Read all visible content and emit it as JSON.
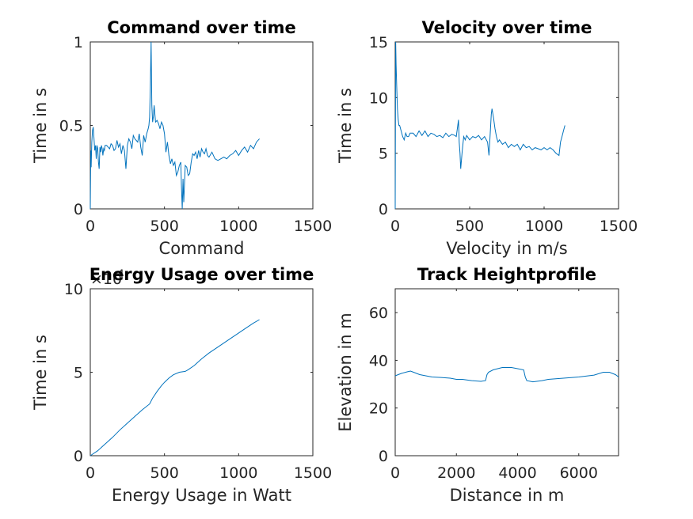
{
  "chart_data": [
    {
      "type": "line",
      "title": "Command over time",
      "xlabel": "Command",
      "ylabel": "Time in s",
      "xlim": [
        0,
        1500
      ],
      "ylim": [
        0,
        1
      ],
      "xticks": [
        0,
        500,
        1000,
        1500
      ],
      "yticks": [
        0,
        0.5,
        1
      ],
      "xtick_labels": [
        "0",
        "500",
        "1000",
        "1500"
      ],
      "ytick_labels": [
        "0",
        "0.5",
        "1"
      ],
      "grid": false,
      "series": [
        {
          "color": "#0072bd",
          "x": [
            0,
            3,
            6,
            10,
            15,
            20,
            25,
            30,
            35,
            40,
            45,
            50,
            55,
            60,
            65,
            70,
            75,
            80,
            85,
            90,
            95,
            100,
            110,
            120,
            130,
            140,
            150,
            160,
            170,
            180,
            190,
            200,
            210,
            220,
            230,
            240,
            250,
            260,
            270,
            280,
            290,
            300,
            310,
            320,
            330,
            340,
            350,
            360,
            370,
            380,
            390,
            395,
            400,
            405,
            410,
            415,
            420,
            425,
            430,
            440,
            450,
            460,
            470,
            480,
            490,
            500,
            510,
            520,
            530,
            540,
            550,
            560,
            570,
            580,
            590,
            600,
            610,
            615,
            620,
            625,
            630,
            640,
            650,
            660,
            670,
            680,
            690,
            700,
            710,
            720,
            730,
            740,
            750,
            760,
            770,
            780,
            790,
            800,
            820,
            840,
            860,
            880,
            900,
            920,
            940,
            960,
            980,
            1000,
            1020,
            1040,
            1060,
            1080,
            1100,
            1120,
            1140
          ],
          "y": [
            0.0,
            0.35,
            0.25,
            0.4,
            0.47,
            0.49,
            0.42,
            0.35,
            0.38,
            0.3,
            0.38,
            0.36,
            0.28,
            0.24,
            0.37,
            0.34,
            0.38,
            0.36,
            0.32,
            0.36,
            0.35,
            0.38,
            0.38,
            0.37,
            0.36,
            0.39,
            0.38,
            0.35,
            0.36,
            0.41,
            0.37,
            0.39,
            0.33,
            0.38,
            0.35,
            0.24,
            0.38,
            0.42,
            0.4,
            0.36,
            0.44,
            0.42,
            0.41,
            0.4,
            0.45,
            0.37,
            0.32,
            0.44,
            0.4,
            0.45,
            0.48,
            0.5,
            0.55,
            0.75,
            1.0,
            0.62,
            0.52,
            0.55,
            0.62,
            0.52,
            0.53,
            0.51,
            0.48,
            0.52,
            0.5,
            0.45,
            0.34,
            0.4,
            0.32,
            0.27,
            0.3,
            0.26,
            0.28,
            0.2,
            0.22,
            0.26,
            0.28,
            0.12,
            0.0,
            0.18,
            0.04,
            0.26,
            0.25,
            0.2,
            0.21,
            0.28,
            0.33,
            0.32,
            0.34,
            0.3,
            0.35,
            0.31,
            0.36,
            0.34,
            0.33,
            0.36,
            0.32,
            0.31,
            0.34,
            0.3,
            0.29,
            0.3,
            0.31,
            0.3,
            0.32,
            0.33,
            0.35,
            0.32,
            0.35,
            0.37,
            0.34,
            0.38,
            0.36,
            0.4,
            0.42
          ]
        }
      ]
    },
    {
      "type": "line",
      "title": "Velocity over time",
      "xlabel": "Velocity in m/s",
      "ylabel": "Time in s",
      "xlim": [
        0,
        1500
      ],
      "ylim": [
        0,
        15
      ],
      "xticks": [
        0,
        500,
        1000,
        1500
      ],
      "yticks": [
        0,
        5,
        10,
        15
      ],
      "xtick_labels": [
        "0",
        "500",
        "1000",
        "1500"
      ],
      "ytick_labels": [
        "0",
        "5",
        "10",
        "15"
      ],
      "grid": false,
      "series": [
        {
          "color": "#0072bd",
          "x": [
            0,
            3,
            6,
            10,
            15,
            20,
            25,
            30,
            40,
            50,
            60,
            70,
            80,
            90,
            100,
            120,
            140,
            160,
            180,
            200,
            220,
            240,
            260,
            280,
            300,
            320,
            340,
            360,
            380,
            400,
            410,
            420,
            425,
            430,
            435,
            440,
            450,
            460,
            470,
            480,
            500,
            520,
            540,
            560,
            580,
            600,
            620,
            630,
            640,
            645,
            650,
            660,
            670,
            680,
            690,
            700,
            720,
            740,
            760,
            780,
            800,
            820,
            840,
            860,
            880,
            900,
            920,
            940,
            960,
            980,
            1000,
            1020,
            1040,
            1060,
            1080,
            1100,
            1110,
            1120,
            1130,
            1140
          ],
          "y": [
            0.0,
            15.0,
            13.0,
            11.0,
            9.0,
            8.0,
            7.5,
            7.5,
            7.0,
            6.5,
            6.2,
            6.8,
            6.5,
            6.5,
            6.8,
            6.8,
            6.5,
            7.0,
            6.6,
            7.0,
            6.5,
            6.8,
            6.7,
            6.5,
            6.6,
            6.4,
            6.8,
            6.5,
            6.7,
            6.6,
            6.5,
            7.5,
            8.0,
            6.0,
            5.0,
            3.6,
            5.2,
            6.5,
            6.2,
            6.6,
            6.2,
            6.5,
            6.4,
            6.6,
            6.2,
            6.5,
            6.0,
            4.8,
            7.2,
            8.5,
            9.0,
            8.2,
            7.2,
            6.5,
            6.0,
            6.2,
            5.8,
            6.0,
            5.5,
            5.8,
            5.6,
            5.8,
            5.3,
            5.8,
            5.5,
            5.6,
            5.3,
            5.5,
            5.4,
            5.3,
            5.5,
            5.3,
            5.5,
            5.3,
            5.0,
            4.8,
            6.0,
            6.5,
            7.0,
            7.5
          ]
        }
      ]
    },
    {
      "type": "line",
      "title": "Energy Usage over time",
      "xlabel": "Energy Usage in Watt",
      "ylabel": "Time in s",
      "xlim": [
        0,
        1500
      ],
      "ylim": [
        0,
        100000
      ],
      "xticks": [
        0,
        500,
        1000,
        1500
      ],
      "yticks": [
        0,
        50000,
        100000
      ],
      "xtick_labels": [
        "0",
        "500",
        "1000",
        "1500"
      ],
      "ytick_labels": [
        "0",
        "5",
        "10"
      ],
      "exponent_label": "×10",
      "exponent_power": "4",
      "grid": false,
      "series": [
        {
          "color": "#0072bd",
          "x": [
            0,
            20,
            50,
            100,
            150,
            200,
            250,
            300,
            350,
            400,
            420,
            450,
            480,
            500,
            530,
            560,
            600,
            640,
            660,
            700,
            750,
            800,
            850,
            900,
            950,
            1000,
            1050,
            1100,
            1140
          ],
          "y": [
            0,
            1200,
            3000,
            7000,
            11000,
            15500,
            19500,
            23500,
            27500,
            31000,
            34500,
            38500,
            42000,
            44000,
            46500,
            48500,
            50000,
            50500,
            51500,
            54000,
            58000,
            61500,
            64500,
            67500,
            70500,
            73500,
            76500,
            79500,
            81500
          ]
        }
      ]
    },
    {
      "type": "line",
      "title": "Track Heightprofile",
      "xlabel": "Distance in m",
      "ylabel": "Elevation in m",
      "xlim": [
        0,
        7300
      ],
      "ylim": [
        0,
        70
      ],
      "xticks": [
        0,
        2000,
        4000,
        6000
      ],
      "yticks": [
        0,
        20,
        40,
        60
      ],
      "xtick_labels": [
        "0",
        "2000",
        "4000",
        "6000"
      ],
      "ytick_labels": [
        "0",
        "20",
        "40",
        "60"
      ],
      "grid": false,
      "series": [
        {
          "color": "#0072bd",
          "x": [
            0,
            200,
            400,
            500,
            600,
            800,
            1000,
            1200,
            1500,
            1800,
            2000,
            2200,
            2500,
            2800,
            2950,
            3000,
            3050,
            3200,
            3500,
            3800,
            4000,
            4200,
            4250,
            4300,
            4500,
            4800,
            5000,
            5500,
            6000,
            6500,
            6800,
            7000,
            7200,
            7300
          ],
          "y": [
            33.5,
            34.5,
            35.2,
            35.5,
            35.0,
            34.0,
            33.5,
            33.0,
            32.8,
            32.5,
            32.0,
            32.0,
            31.5,
            31.2,
            31.5,
            34.0,
            35.0,
            36.0,
            37.0,
            37.0,
            36.5,
            36.0,
            33.0,
            31.5,
            31.0,
            31.5,
            32.0,
            32.5,
            33.0,
            33.8,
            35.0,
            35.0,
            34.0,
            33.0
          ]
        }
      ]
    }
  ]
}
